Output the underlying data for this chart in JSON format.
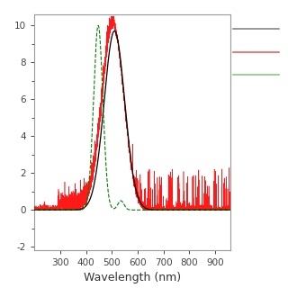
{
  "xlim": [
    200,
    960
  ],
  "ylim": [
    -0.2,
    1.05
  ],
  "ytick_vals": [
    -0.2,
    0.0,
    0.2,
    0.4,
    0.6,
    0.8,
    1.0
  ],
  "ytick_labels": [
    "-2",
    "0",
    "2",
    "4",
    "6",
    "8",
    "10"
  ],
  "xticks": [
    300,
    400,
    500,
    600,
    700,
    800,
    900
  ],
  "xtick_labels": [
    "300",
    "400",
    "500",
    "600",
    "700",
    "800",
    "900"
  ],
  "xlabel": "Wavelength (nm)",
  "background_color": "#ffffff",
  "black_peak_mu": 510,
  "black_peak_sigma": 40,
  "red_peak_mu": 505,
  "red_peak_sigma": 42,
  "green_peak_mu": 447,
  "green_peak_sigma": 18,
  "legend_gray": "#888888",
  "legend_red": "#dd6666",
  "legend_green": "#88cc88"
}
